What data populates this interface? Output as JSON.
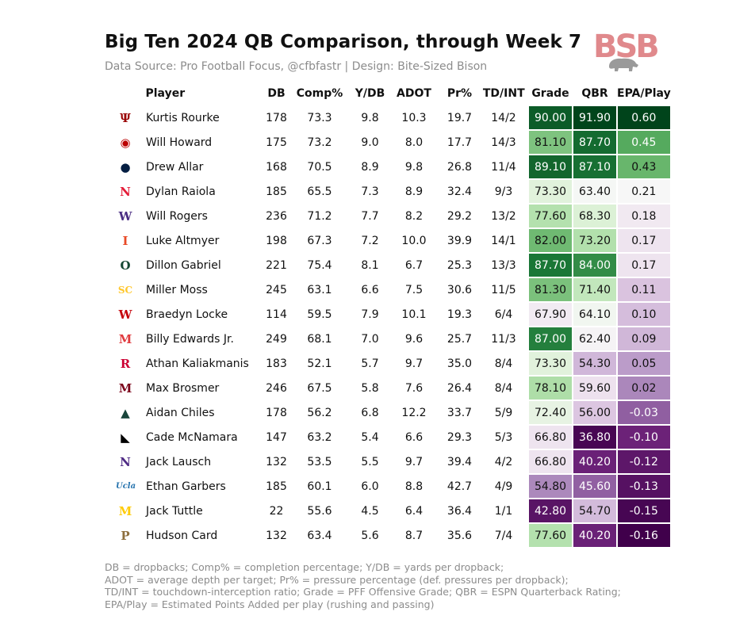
{
  "title": "Big Ten 2024 QB Comparison, through Week 7",
  "subtitle": "Data Source: Pro Football Focus, @cfbfastr | Design: Bite-Sized Bison",
  "logo_text": "BSB",
  "colors": {
    "green_dark": "#00441b",
    "purple_dark": "#40004b",
    "neutral": "#f7f7f7"
  },
  "chart_data": {
    "type": "table",
    "columns": [
      "Player",
      "DB",
      "Comp%",
      "Y/DB",
      "ADOT",
      "Pr%",
      "TD/INT",
      "Grade",
      "QBR",
      "EPA/Play"
    ],
    "color_scales": {
      "Grade": {
        "min": 40,
        "mid": 70,
        "max": 92
      },
      "QBR": {
        "min": 36,
        "mid": 63,
        "max": 92
      },
      "EPA/Play": {
        "min": -0.16,
        "mid": 0.21,
        "max": 0.6
      }
    },
    "rows": [
      {
        "team_icon": "indiana-icon",
        "logo": "Ψ",
        "logo_color": "#990000",
        "player": "Kurtis Rourke",
        "db": "178",
        "comp": "73.3",
        "ydb": "9.8",
        "adot": "10.3",
        "pr": "19.7",
        "tdint": "14/2",
        "grade": "90.00",
        "qbr": "91.90",
        "epa": "0.60"
      },
      {
        "team_icon": "ohio-state-icon",
        "logo": "◉",
        "logo_color": "#bb0000",
        "player": "Will Howard",
        "db": "175",
        "comp": "73.2",
        "ydb": "9.0",
        "adot": "8.0",
        "pr": "17.7",
        "tdint": "14/3",
        "grade": "81.10",
        "qbr": "87.70",
        "epa": "0.45"
      },
      {
        "team_icon": "penn-state-icon",
        "logo": "●",
        "logo_color": "#041e42",
        "player": "Drew Allar",
        "db": "168",
        "comp": "70.5",
        "ydb": "8.9",
        "adot": "9.8",
        "pr": "26.8",
        "tdint": "11/4",
        "grade": "89.10",
        "qbr": "87.10",
        "epa": "0.43"
      },
      {
        "team_icon": "nebraska-icon",
        "logo": "N",
        "logo_color": "#e41c38",
        "player": "Dylan Raiola",
        "db": "185",
        "comp": "65.5",
        "ydb": "7.3",
        "adot": "8.9",
        "pr": "32.4",
        "tdint": "9/3",
        "grade": "73.30",
        "qbr": "63.40",
        "epa": "0.21"
      },
      {
        "team_icon": "washington-icon",
        "logo": "W",
        "logo_color": "#4b2e83",
        "player": "Will Rogers",
        "db": "236",
        "comp": "71.2",
        "ydb": "7.7",
        "adot": "8.2",
        "pr": "29.2",
        "tdint": "13/2",
        "grade": "77.60",
        "qbr": "68.30",
        "epa": "0.18"
      },
      {
        "team_icon": "illinois-icon",
        "logo": "I",
        "logo_color": "#e84a27",
        "player": "Luke Altmyer",
        "db": "198",
        "comp": "67.3",
        "ydb": "7.2",
        "adot": "10.0",
        "pr": "39.9",
        "tdint": "14/1",
        "grade": "82.00",
        "qbr": "73.20",
        "epa": "0.17"
      },
      {
        "team_icon": "oregon-icon",
        "logo": "O",
        "logo_color": "#154733",
        "player": "Dillon Gabriel",
        "db": "221",
        "comp": "75.4",
        "ydb": "8.1",
        "adot": "6.7",
        "pr": "25.3",
        "tdint": "13/3",
        "grade": "87.70",
        "qbr": "84.00",
        "epa": "0.17"
      },
      {
        "team_icon": "usc-icon",
        "logo": "SC",
        "logo_color": "#ffc72c",
        "player": "Miller Moss",
        "db": "245",
        "comp": "63.1",
        "ydb": "6.6",
        "adot": "7.5",
        "pr": "30.6",
        "tdint": "11/5",
        "grade": "81.30",
        "qbr": "71.40",
        "epa": "0.11"
      },
      {
        "team_icon": "wisconsin-icon",
        "logo": "W",
        "logo_color": "#c5050c",
        "player": "Braedyn Locke",
        "db": "114",
        "comp": "59.5",
        "ydb": "7.9",
        "adot": "10.1",
        "pr": "19.3",
        "tdint": "6/4",
        "grade": "67.90",
        "qbr": "64.10",
        "epa": "0.10"
      },
      {
        "team_icon": "maryland-icon",
        "logo": "M",
        "logo_color": "#e03a3e",
        "player": "Billy Edwards Jr.",
        "db": "249",
        "comp": "68.1",
        "ydb": "7.0",
        "adot": "9.6",
        "pr": "25.7",
        "tdint": "11/3",
        "grade": "87.00",
        "qbr": "62.40",
        "epa": "0.09"
      },
      {
        "team_icon": "rutgers-icon",
        "logo": "R",
        "logo_color": "#cc0033",
        "player": "Athan Kaliakmanis",
        "db": "183",
        "comp": "52.1",
        "ydb": "5.7",
        "adot": "9.7",
        "pr": "35.0",
        "tdint": "8/4",
        "grade": "73.30",
        "qbr": "54.30",
        "epa": "0.05"
      },
      {
        "team_icon": "minnesota-icon",
        "logo": "M",
        "logo_color": "#7a0019",
        "player": "Max Brosmer",
        "db": "246",
        "comp": "67.5",
        "ydb": "5.8",
        "adot": "7.6",
        "pr": "26.4",
        "tdint": "8/4",
        "grade": "78.10",
        "qbr": "59.60",
        "epa": "0.02"
      },
      {
        "team_icon": "michigan-state-icon",
        "logo": "▲",
        "logo_color": "#18453b",
        "player": "Aidan Chiles",
        "db": "178",
        "comp": "56.2",
        "ydb": "6.8",
        "adot": "12.2",
        "pr": "33.7",
        "tdint": "5/9",
        "grade": "72.40",
        "qbr": "56.00",
        "epa": "-0.03"
      },
      {
        "team_icon": "iowa-icon",
        "logo": "◣",
        "logo_color": "#000000",
        "player": "Cade McNamara",
        "db": "147",
        "comp": "63.2",
        "ydb": "5.4",
        "adot": "6.6",
        "pr": "29.3",
        "tdint": "5/3",
        "grade": "66.80",
        "qbr": "36.80",
        "epa": "-0.10"
      },
      {
        "team_icon": "northwestern-icon",
        "logo": "N",
        "logo_color": "#4e2a84",
        "player": "Jack Lausch",
        "db": "132",
        "comp": "53.5",
        "ydb": "5.5",
        "adot": "9.7",
        "pr": "39.4",
        "tdint": "4/2",
        "grade": "66.80",
        "qbr": "40.20",
        "epa": "-0.12"
      },
      {
        "team_icon": "ucla-icon",
        "logo": "Ucla",
        "logo_color": "#2774ae",
        "player": "Ethan Garbers",
        "db": "185",
        "comp": "60.1",
        "ydb": "6.0",
        "adot": "8.8",
        "pr": "42.7",
        "tdint": "4/9",
        "grade": "54.80",
        "qbr": "45.60",
        "epa": "-0.13"
      },
      {
        "team_icon": "michigan-icon",
        "logo": "M",
        "logo_color": "#ffcb05",
        "player": "Jack Tuttle",
        "db": "22",
        "comp": "55.6",
        "ydb": "4.5",
        "adot": "6.4",
        "pr": "36.4",
        "tdint": "1/1",
        "grade": "42.80",
        "qbr": "54.70",
        "epa": "-0.15"
      },
      {
        "team_icon": "purdue-icon",
        "logo": "P",
        "logo_color": "#8e6f3e",
        "player": "Hudson Card",
        "db": "132",
        "comp": "63.4",
        "ydb": "5.6",
        "adot": "8.7",
        "pr": "35.6",
        "tdint": "7/4",
        "grade": "77.60",
        "qbr": "40.20",
        "epa": "-0.16"
      }
    ]
  },
  "footnote": [
    "DB = dropbacks; Comp% = completion percentage; Y/DB = yards per dropback;",
    "ADOT = average depth per target; Pr% = pressure percentage (def. pressures per dropback);",
    "TD/INT = touchdown-interception ratio; Grade = PFF Offensive Grade; QBR = ESPN Quarterback Rating;",
    "EPA/Play = Estimated Points Added per play (rushing and passing)"
  ]
}
